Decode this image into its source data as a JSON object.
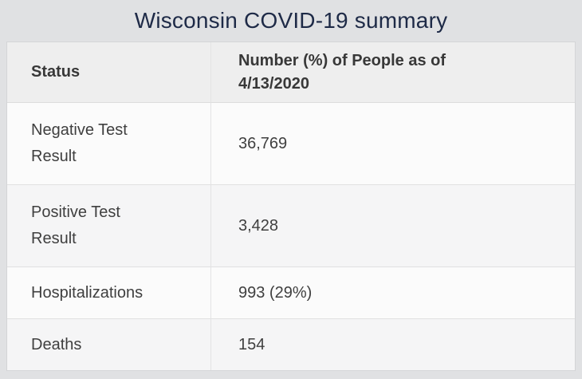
{
  "chart_data": {
    "type": "table",
    "title": "Wisconsin COVID-19 summary",
    "columns": [
      "Status",
      "Number (%) of People as of 4/13/2020"
    ],
    "rows": [
      [
        "Negative Test Result",
        "36,769"
      ],
      [
        "Positive Test Result",
        "3,428"
      ],
      [
        "Hospitalizations",
        "993 (29%)"
      ],
      [
        "Deaths",
        "154"
      ]
    ],
    "layout_hints": {
      "legend": "none",
      "grid": "table-borders",
      "zebra_striping": true
    }
  },
  "colors": {
    "title_text": "#1e2a47",
    "page_background": "#e0e1e3",
    "header_background": "#eeeeee",
    "row_background": "#fbfbfb",
    "row_alt_background": "#f5f5f6",
    "border": "#d4d5d7",
    "cell_text": "#3f3f3f"
  }
}
